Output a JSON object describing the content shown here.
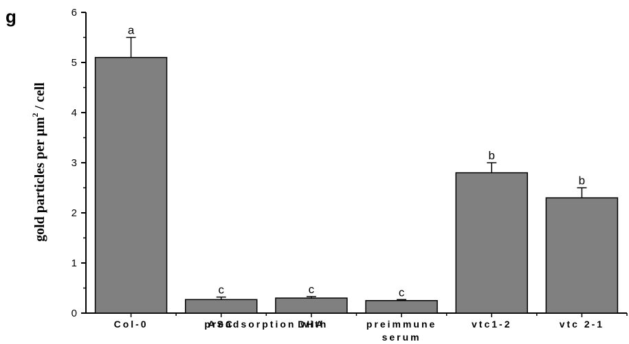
{
  "panel_label": "g",
  "chart_data": {
    "type": "bar",
    "title": "",
    "ylabel_main": "gold particles per μm",
    "ylabel_sup": "2",
    "ylabel_tail": " / cell",
    "xlabel": "",
    "ylim": [
      0,
      6
    ],
    "yticks": [
      "0",
      "1",
      "2",
      "3",
      "4",
      "5",
      "6"
    ],
    "categories": [
      [
        "Col-0"
      ],
      [
        "preadsorption with",
        "ASC"
      ],
      [
        "preadsorption with",
        "DHA"
      ],
      [
        "preimmune",
        "serum"
      ],
      [
        "vtc1-2"
      ],
      [
        "vtc 2-1"
      ]
    ],
    "category_labels": [
      [
        "Col-0"
      ],
      [
        "ASC"
      ],
      [
        "DHA"
      ],
      [
        "preimmune",
        "serum"
      ],
      [
        "vtc1-2"
      ],
      [
        "vtc 2-1"
      ]
    ],
    "shared_label": "preadsorption with",
    "values": [
      5.1,
      0.27,
      0.3,
      0.25,
      2.8,
      2.3
    ],
    "errors": [
      0.4,
      0.05,
      0.03,
      0.02,
      0.2,
      0.2
    ],
    "significance": [
      "a",
      "c",
      "c",
      "c",
      "b",
      "b"
    ],
    "bar_color": "#808080",
    "grid": false,
    "legend": "none"
  }
}
